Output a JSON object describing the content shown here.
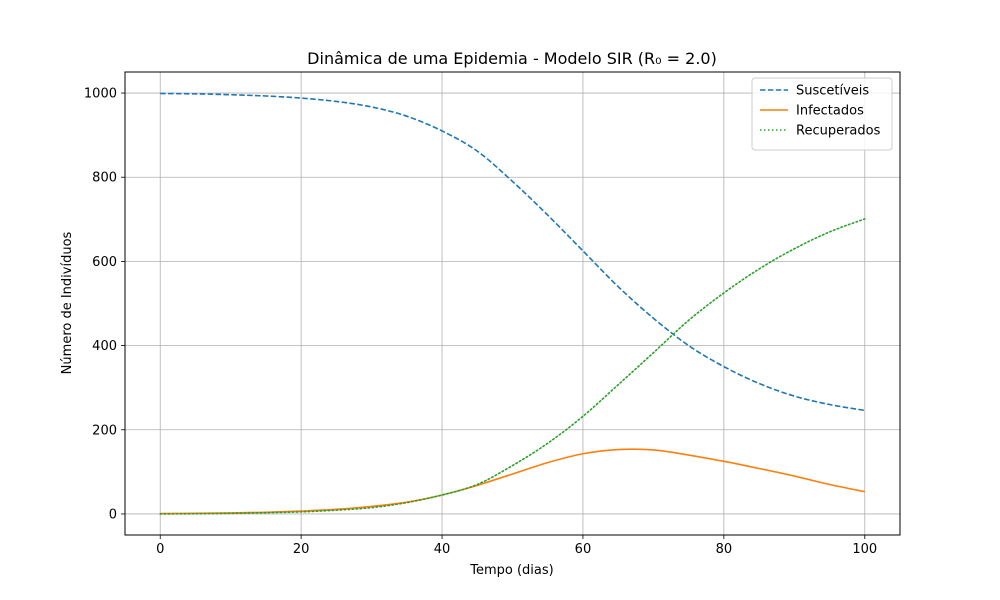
{
  "chart_data": {
    "type": "line",
    "title": "Dinâmica de uma Epidemia - Modelo SIR (R₀ = 2.0)",
    "xlabel": "Tempo (dias)",
    "ylabel": "Número de Indivíduos",
    "xlim": [
      -5,
      105
    ],
    "ylim": [
      -50,
      1050
    ],
    "xticks": [
      0,
      20,
      40,
      60,
      80,
      100
    ],
    "yticks": [
      0,
      200,
      400,
      600,
      800,
      1000
    ],
    "grid": true,
    "legend_position": "top-right",
    "x": [
      0,
      5,
      10,
      15,
      20,
      25,
      30,
      35,
      40,
      45,
      50,
      55,
      60,
      65,
      70,
      75,
      80,
      85,
      90,
      95,
      100
    ],
    "series": [
      {
        "name": "Suscetíveis",
        "color": "#1f77b4",
        "style": "dashed",
        "values": [
          999,
          998,
          996,
          993,
          988,
          980,
          967,
          945,
          910,
          862,
          790,
          710,
          625,
          540,
          465,
          400,
          350,
          310,
          280,
          260,
          246
        ]
      },
      {
        "name": "Infectados",
        "color": "#ff7f0e",
        "style": "solid",
        "values": [
          1,
          1.5,
          2.5,
          4,
          7,
          11,
          18,
          28,
          45,
          68,
          95,
          122,
          143,
          153,
          152,
          140,
          125,
          108,
          90,
          70,
          53
        ]
      },
      {
        "name": "Recuperados",
        "color": "#2ca02c",
        "style": "dotted",
        "values": [
          0,
          0.5,
          1.5,
          3,
          5,
          9,
          15,
          27,
          45,
          70,
          115,
          168,
          232,
          307,
          383,
          460,
          525,
          582,
          630,
          670,
          701
        ]
      }
    ]
  }
}
